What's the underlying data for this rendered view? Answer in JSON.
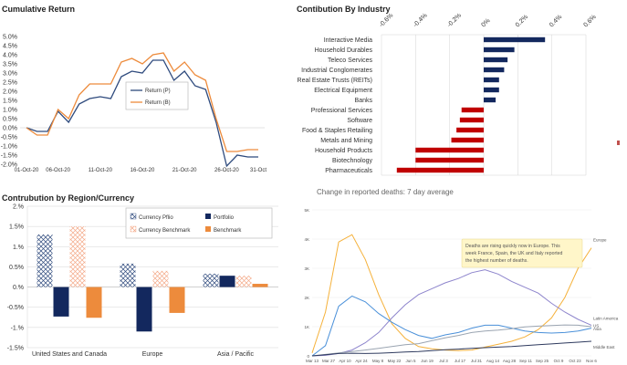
{
  "chart_data": [
    {
      "type": "line",
      "title": "Cumulative Return",
      "x": [
        "01-Oct-20",
        "02-Oct-20",
        "05-Oct-20",
        "06-Oct-20",
        "07-Oct-20",
        "08-Oct-20",
        "09-Oct-20",
        "12-Oct-20",
        "13-Oct-20",
        "14-Oct-20",
        "15-Oct-20",
        "16-Oct-20",
        "19-Oct-20",
        "20-Oct-20",
        "21-Oct-20",
        "22-Oct-20",
        "23-Oct-20",
        "26-Oct-20",
        "27-Oct-20",
        "28-Oct-20",
        "29-Oct-20",
        "30-Oct-20",
        "31-Oct-20"
      ],
      "x_tick_labels": [
        "01-Oct-20",
        "06-Oct-20",
        "11-Oct-20",
        "16-Oct-20",
        "21-Oct-20",
        "26-Oct-20",
        "31-Oct"
      ],
      "y_tick_labels": [
        "5.0%",
        "4.5%",
        "4.0%",
        "3.5%",
        "3.0%",
        "2.5%",
        "2.0%",
        "1.5%",
        "1.0%",
        "0.5%",
        "0.0%",
        "-0.5%",
        "-1.0%",
        "-1.5%",
        "-2.0%"
      ],
      "ylim": [
        -2.0,
        5.0
      ],
      "legend_position": "center-right",
      "series": [
        {
          "name": "Return (P)",
          "color": "#2e4a7d",
          "values": [
            0.0,
            -0.2,
            -0.2,
            0.9,
            0.3,
            1.3,
            1.6,
            1.7,
            1.6,
            2.8,
            3.1,
            3.0,
            3.7,
            3.7,
            2.6,
            3.1,
            2.3,
            2.1,
            0.3,
            -2.1,
            -1.5,
            -1.6,
            -1.6
          ]
        },
        {
          "name": "Return (B)",
          "color": "#ed8b3c",
          "values": [
            0.0,
            -0.4,
            -0.4,
            1.0,
            0.5,
            1.8,
            2.4,
            2.4,
            2.4,
            3.6,
            3.8,
            3.5,
            4.0,
            4.1,
            3.1,
            3.6,
            2.9,
            2.6,
            0.5,
            -1.3,
            -1.3,
            -1.2,
            -1.2
          ]
        }
      ]
    },
    {
      "type": "bar",
      "orientation": "horizontal",
      "title": "Contibution By Industry",
      "x_tick_labels": [
        "-0.6%",
        "-0.4%",
        "-0.2%",
        "0%",
        "0.2%",
        "0.4%",
        "0.6%"
      ],
      "xlim": [
        -0.6,
        0.6
      ],
      "categories": [
        "Interactive Media",
        "Household Durables",
        "Teleco Services",
        "Industrial Conglomerates",
        "Real Estate Trusts (REITs)",
        "Electrical Equipment",
        "Banks",
        "Professional Services",
        "Software",
        "Food & Staples Retailing",
        "Metals and Mining",
        "Household Products",
        "Biotechnology",
        "Pharmaceuticals"
      ],
      "values": [
        0.36,
        0.18,
        0.14,
        0.12,
        0.09,
        0.09,
        0.07,
        -0.13,
        -0.14,
        -0.16,
        -0.19,
        -0.4,
        -0.4,
        -0.51
      ],
      "colors": {
        "positive": "#13285e",
        "negative": "#c00000"
      }
    },
    {
      "type": "bar",
      "title": "Contrubution by Region/Currency",
      "categories": [
        "United States and Canada",
        "Europe",
        "Asia / Pacific"
      ],
      "y_tick_labels": [
        "2.%",
        "1.5%",
        "1.%",
        "0.5%",
        "0.%",
        "-0.5%",
        "-1.%",
        "-1.5%"
      ],
      "ylim": [
        -1.5,
        2.0
      ],
      "legend_position": "top-right",
      "series": [
        {
          "name": "Currency Pflio",
          "color": "#2e4a7d",
          "pattern": "crosshatch",
          "values": [
            1.3,
            0.58,
            0.33
          ]
        },
        {
          "name": "Portfolio",
          "color": "#13285e",
          "values": [
            -0.73,
            -1.1,
            0.28
          ]
        },
        {
          "name": "Currency Benchmark",
          "color": "#f4a988",
          "pattern": "crosshatch",
          "values": [
            1.5,
            0.4,
            0.28
          ]
        },
        {
          "name": "Benchmark",
          "color": "#ed8b3c",
          "values": [
            -0.76,
            -0.64,
            0.08
          ]
        }
      ]
    },
    {
      "type": "line",
      "title": "Change in reported deaths: 7 day average",
      "x_tick_labels": [
        "Mar 13",
        "Mar 27",
        "Apr 10",
        "Apr 24",
        "May 8",
        "May 22",
        "Jun 5",
        "Jun 19",
        "Jul 3",
        "Jul 17",
        "Jul 31",
        "Aug 14",
        "Aug 28",
        "Sep 11",
        "Sep 25",
        "Oct 9",
        "Oct 23",
        "Nov 6"
      ],
      "y_tick_labels": [
        "0",
        "1K",
        "2K",
        "3K",
        "4K",
        "5K"
      ],
      "ylim": [
        0,
        5000
      ],
      "annotation": "Deaths are rising quickly now in Europe. This week France, Spain, the UK and Italy reported the highest number of deaths.",
      "series": [
        {
          "name": "Europe",
          "color": "#f5b13a",
          "values": [
            100,
            1500,
            3900,
            4150,
            3300,
            2100,
            1100,
            600,
            320,
            240,
            200,
            180,
            200,
            300,
            400,
            500,
            650,
            900,
            1300,
            2000,
            3000,
            3700
          ]
        },
        {
          "name": "Latin America",
          "color": "#8d84cc",
          "values": [
            0,
            20,
            80,
            200,
            450,
            800,
            1300,
            1750,
            2100,
            2300,
            2500,
            2650,
            2850,
            2950,
            2800,
            2550,
            2350,
            2150,
            1800,
            1500,
            1250,
            1050
          ]
        },
        {
          "name": "US",
          "color": "#4a90d9",
          "values": [
            0,
            350,
            1700,
            2050,
            1850,
            1450,
            1150,
            900,
            700,
            600,
            720,
            800,
            950,
            1050,
            1050,
            950,
            850,
            800,
            780,
            800,
            850,
            950
          ]
        },
        {
          "name": "Asia",
          "color": "#9aa4b1",
          "values": [
            0,
            50,
            100,
            150,
            200,
            260,
            320,
            380,
            420,
            520,
            620,
            700,
            800,
            850,
            880,
            930,
            990,
            1020,
            1040,
            1060,
            1050,
            1000
          ]
        },
        {
          "name": "Middle East",
          "color": "#2e3a5e",
          "values": [
            0,
            40,
            80,
            90,
            80,
            90,
            110,
            130,
            150,
            180,
            210,
            230,
            260,
            280,
            300,
            320,
            350,
            380,
            410,
            440,
            470,
            500
          ]
        }
      ]
    }
  ]
}
